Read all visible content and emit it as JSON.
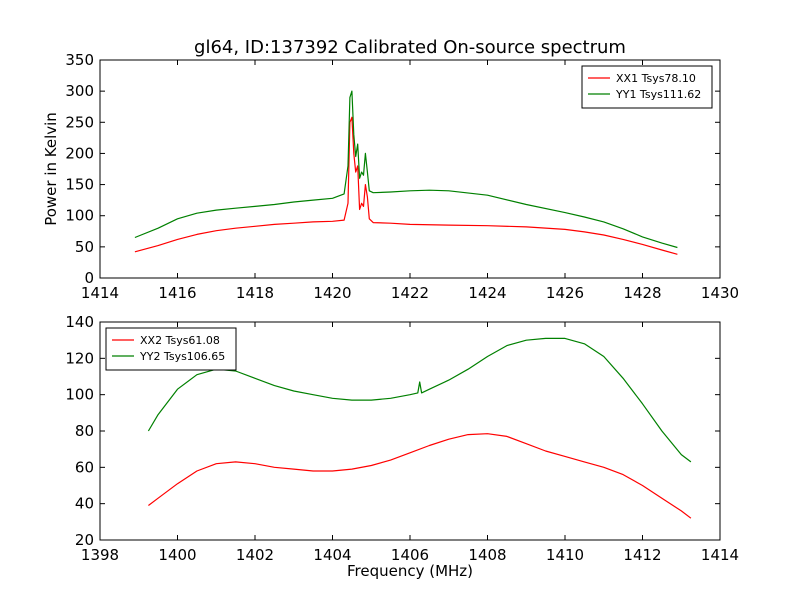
{
  "figure": {
    "title": "gl64, ID:137392 Calibrated On-source spectrum",
    "ylabel": "Power in Kelvin",
    "xlabel": "Frequency (MHz)"
  },
  "chart_data": [
    {
      "type": "line",
      "title": "gl64, ID:137392 Calibrated On-source spectrum",
      "xlabel": "",
      "ylabel": "Power in Kelvin",
      "xlim": [
        1414,
        1430
      ],
      "ylim": [
        0,
        350
      ],
      "xticks": [
        1414,
        1416,
        1418,
        1420,
        1422,
        1424,
        1426,
        1428,
        1430
      ],
      "yticks": [
        0,
        50,
        100,
        150,
        200,
        250,
        300,
        350
      ],
      "legend": "top-right",
      "grid": false,
      "series": [
        {
          "name": "XX1 Tsys78.10",
          "color": "#ff0000",
          "x": [
            1414.9,
            1415.5,
            1416,
            1416.5,
            1417,
            1417.5,
            1418,
            1418.5,
            1419,
            1419.5,
            1420,
            1420.3,
            1420.4,
            1420.45,
            1420.5,
            1420.55,
            1420.6,
            1420.65,
            1420.7,
            1420.75,
            1420.8,
            1420.85,
            1420.9,
            1420.95,
            1421.05,
            1421.5,
            1422,
            1423,
            1424,
            1425,
            1426,
            1426.5,
            1427,
            1427.5,
            1428,
            1428.5,
            1428.9
          ],
          "y": [
            42,
            52,
            62,
            70,
            76,
            80,
            83,
            86,
            88,
            90,
            91,
            93,
            120,
            250,
            258,
            200,
            170,
            180,
            110,
            120,
            115,
            150,
            130,
            95,
            89,
            88,
            86,
            85,
            84,
            82,
            78,
            74,
            69,
            62,
            54,
            45,
            38
          ]
        },
        {
          "name": "YY1 Tsys111.62",
          "color": "#008000",
          "x": [
            1414.9,
            1415.5,
            1416,
            1416.5,
            1417,
            1417.5,
            1418,
            1418.5,
            1419,
            1419.5,
            1420,
            1420.3,
            1420.4,
            1420.45,
            1420.5,
            1420.55,
            1420.6,
            1420.65,
            1420.7,
            1420.75,
            1420.8,
            1420.85,
            1420.9,
            1420.95,
            1421.05,
            1421.5,
            1422,
            1422.5,
            1423,
            1424,
            1425,
            1426,
            1426.5,
            1427,
            1427.5,
            1428,
            1428.5,
            1428.9
          ],
          "y": [
            65,
            80,
            95,
            104,
            109,
            112,
            115,
            118,
            122,
            125,
            128,
            135,
            180,
            290,
            300,
            230,
            195,
            215,
            160,
            170,
            165,
            200,
            170,
            140,
            137,
            138,
            140,
            141,
            140,
            133,
            118,
            105,
            98,
            90,
            79,
            66,
            56,
            49
          ]
        }
      ]
    },
    {
      "type": "line",
      "title": "",
      "xlabel": "Frequency (MHz)",
      "ylabel": "",
      "xlim": [
        1398,
        1414
      ],
      "ylim": [
        20,
        140
      ],
      "xticks": [
        1398,
        1400,
        1402,
        1404,
        1406,
        1408,
        1410,
        1412,
        1414
      ],
      "yticks": [
        20,
        40,
        60,
        80,
        100,
        120,
        140
      ],
      "legend": "top-left",
      "grid": false,
      "series": [
        {
          "name": "XX2 Tsys61.08",
          "color": "#ff0000",
          "x": [
            1399.25,
            1399.5,
            1400,
            1400.5,
            1401,
            1401.5,
            1402,
            1402.5,
            1403,
            1403.5,
            1404,
            1404.5,
            1405,
            1405.5,
            1406,
            1406.5,
            1407,
            1407.5,
            1408,
            1408.5,
            1409,
            1409.5,
            1410,
            1410.5,
            1411,
            1411.5,
            1412,
            1412.5,
            1413,
            1413.25
          ],
          "y": [
            39,
            43,
            51,
            58,
            62,
            63,
            62,
            60,
            59,
            58,
            58,
            59,
            61,
            64,
            68,
            72,
            75.5,
            78,
            78.5,
            77,
            73,
            69,
            66,
            63,
            60,
            56,
            50,
            43,
            36,
            32
          ]
        },
        {
          "name": "YY2 Tsys106.65",
          "color": "#008000",
          "x": [
            1399.25,
            1399.5,
            1400,
            1400.5,
            1401,
            1401.5,
            1402,
            1402.5,
            1403,
            1403.5,
            1404,
            1404.5,
            1405,
            1405.5,
            1406,
            1406.2,
            1406.25,
            1406.3,
            1406.5,
            1407,
            1407.5,
            1408,
            1408.5,
            1409,
            1409.5,
            1410,
            1410.5,
            1411,
            1411.5,
            1412,
            1412.5,
            1413,
            1413.25
          ],
          "y": [
            80,
            89,
            103,
            111,
            114,
            113,
            109,
            105,
            102,
            100,
            98,
            97,
            97,
            98,
            100,
            101,
            107,
            101,
            103,
            108,
            114,
            121,
            127,
            130,
            131,
            131,
            128,
            121,
            109,
            95,
            80,
            67,
            63
          ]
        }
      ]
    }
  ]
}
